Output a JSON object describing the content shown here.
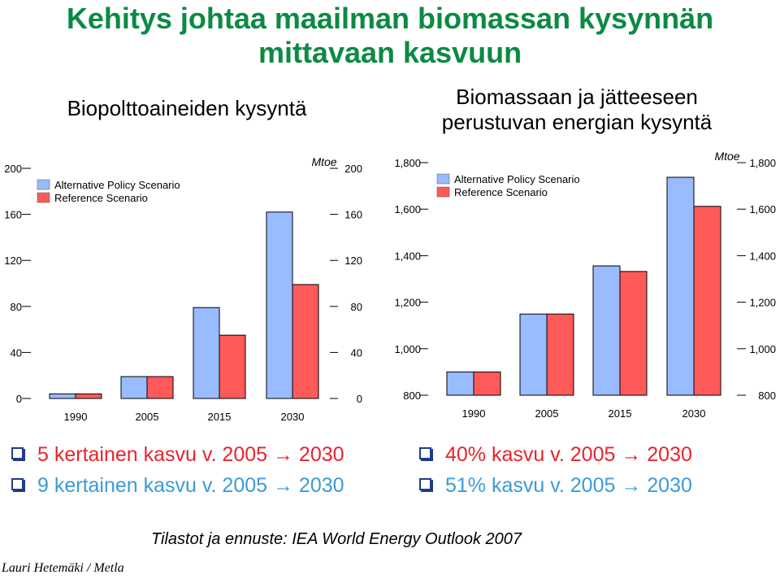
{
  "page": {
    "title_line1": "Kehitys johtaa maailman biomassan kysynnän",
    "title_line2": "mittavaan kasvuun",
    "left_heading": "Biopolttoaineiden kysyntä",
    "right_heading_line1": "Biomassaan ja jätteeseen",
    "right_heading_line2": "perustuvan energian kysyntä",
    "left_bullets": [
      {
        "text": "5 kertainen kasvu v. 2005 → 2030",
        "style": "red"
      },
      {
        "text": "9 kertainen kasvu v. 2005 → 2030",
        "style": "blue"
      }
    ],
    "right_bullets": [
      {
        "text": "40% kasvu v. 2005 → 2030",
        "style": "red"
      },
      {
        "text": "51% kasvu v. 2005 → 2030",
        "style": "blue"
      }
    ],
    "source": "Tilastot ja ennuste: IEA World Energy Outlook 2007",
    "author": "Lauri Hetemäki / Metla",
    "colors": {
      "title": "#0b8a43",
      "alt_series": "#99bbff",
      "ref_series": "#ff5a5a",
      "bullet_red": "#e8242b",
      "bullet_blue": "#3a9bd8"
    }
  },
  "chart_data": [
    {
      "type": "bar",
      "unit": "Mtoe",
      "categories": [
        "1990",
        "2005",
        "2015",
        "2030"
      ],
      "series": [
        {
          "name": "Alternative Policy Scenario",
          "color": "#99bbff",
          "values": [
            4,
            19,
            79,
            162
          ]
        },
        {
          "name": "Reference Scenario",
          "color": "#ff5a5a",
          "values": [
            4,
            19,
            55,
            99
          ]
        }
      ],
      "ylim": [
        0,
        200
      ],
      "yticks": [
        "0",
        "40",
        "80",
        "120",
        "160",
        "200"
      ],
      "legend": "top-left"
    },
    {
      "type": "bar",
      "unit": "Mtoe",
      "categories": [
        "1990",
        "2005",
        "2015",
        "2030"
      ],
      "series": [
        {
          "name": "Alternative Policy Scenario",
          "color": "#99bbff",
          "values": [
            900,
            1149,
            1356,
            1737
          ]
        },
        {
          "name": "Reference Scenario",
          "color": "#ff5a5a",
          "values": [
            900,
            1149,
            1332,
            1612
          ]
        }
      ],
      "ylim": [
        800,
        1800
      ],
      "yticks": [
        "800",
        "1,000",
        "1,200",
        "1,400",
        "1,600",
        "1,800"
      ],
      "legend": "top-left"
    }
  ]
}
